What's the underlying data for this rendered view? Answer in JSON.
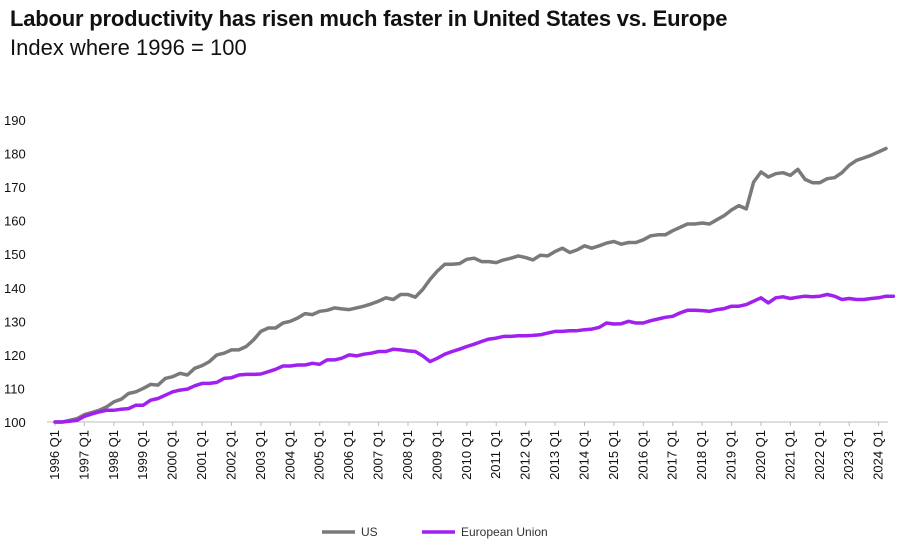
{
  "chart_data": {
    "type": "line",
    "title": "Labour productivity has risen much faster in United States vs. Europe",
    "subtitle": "Index where 1996 = 100",
    "xlabel": "",
    "ylabel": "",
    "ylim": [
      100,
      190
    ],
    "yticks": [
      100,
      110,
      120,
      130,
      140,
      150,
      160,
      170,
      180,
      190
    ],
    "xticks": [
      "1996 Q1",
      "1997 Q1",
      "1998 Q1",
      "1999 Q1",
      "2000 Q1",
      "2001 Q1",
      "2002 Q1",
      "2003 Q1",
      "2004 Q1",
      "2005 Q1",
      "2006 Q1",
      "2007 Q1",
      "2008 Q1",
      "2009 Q1",
      "2010 Q1",
      "2011 Q1",
      "2012 Q1",
      "2013 Q1",
      "2014 Q1",
      "2015 Q1",
      "2016 Q1",
      "2017 Q1",
      "2018 Q1",
      "2019 Q1",
      "2020 Q1",
      "2021 Q1",
      "2022 Q1",
      "2023 Q1",
      "2024 Q1"
    ],
    "x_start": "1996 Q1",
    "x_step": "quarter",
    "x_end": "2024 Q4",
    "grid": false,
    "legend_position": "bottom-center",
    "series": [
      {
        "name": "US",
        "color": "#7a7a7a",
        "values": [
          100,
          100,
          100.5,
          101,
          102.2,
          102.8,
          103.5,
          104.5,
          106,
          106.8,
          108.5,
          109,
          110,
          111.2,
          111,
          113,
          113.5,
          114.5,
          114,
          116,
          116.8,
          118,
          120,
          120.5,
          121.5,
          121.5,
          122.5,
          124.5,
          127,
          128,
          128,
          129.5,
          130,
          131,
          132.3,
          132,
          133,
          133.3,
          134,
          133.7,
          133.5,
          134,
          134.5,
          135.2,
          136,
          137,
          136.5,
          138,
          138,
          137.2,
          139.5,
          142.5,
          145,
          147,
          147,
          147.2,
          148.5,
          148.8,
          147.8,
          147.8,
          147.5,
          148.3,
          148.8,
          149.5,
          149,
          148.3,
          149.7,
          149.5,
          150.8,
          151.8,
          150.5,
          151.3,
          152.5,
          151.8,
          152.5,
          153.3,
          153.8,
          153,
          153.5,
          153.5,
          154.3,
          155.5,
          155.8,
          155.8,
          157,
          158,
          159,
          159,
          159.3,
          159,
          160.3,
          161.5,
          163.2,
          164.5,
          163.5,
          171.5,
          174.5,
          173,
          174,
          174.3,
          173.5,
          175.3,
          172.3,
          171.3,
          171.3,
          172.5,
          172.8,
          174.3,
          176.5,
          178,
          178.7,
          179.5,
          180.5,
          181.5
        ]
      },
      {
        "name": "European Union",
        "color": "#a020f0",
        "values": [
          100,
          100,
          100.2,
          100.5,
          101.7,
          102.4,
          103,
          103.5,
          103.5,
          103.8,
          104,
          105,
          105,
          106.5,
          107,
          108,
          109,
          109.5,
          109.8,
          110.8,
          111.5,
          111.5,
          111.8,
          113,
          113.2,
          114,
          114.2,
          114.2,
          114.3,
          115,
          115.7,
          116.7,
          116.7,
          117,
          117,
          117.5,
          117.2,
          118.5,
          118.5,
          119,
          120,
          119.7,
          120.2,
          120.5,
          121,
          121,
          121.7,
          121.5,
          121.2,
          121,
          119.7,
          118,
          119,
          120.2,
          121,
          121.7,
          122.5,
          123.2,
          124,
          124.7,
          125,
          125.5,
          125.5,
          125.7,
          125.7,
          125.8,
          126,
          126.5,
          127,
          127,
          127.2,
          127.2,
          127.5,
          127.7,
          128.2,
          129.5,
          129.2,
          129.3,
          130,
          129.5,
          129.5,
          130.2,
          130.7,
          131.2,
          131.5,
          132.5,
          133.3,
          133.3,
          133.2,
          133,
          133.5,
          133.8,
          134.5,
          134.5,
          135,
          136,
          137,
          135.5,
          137,
          137.3,
          136.8,
          137.2,
          137.5,
          137.3,
          137.5,
          138,
          137.5,
          136.5,
          136.8,
          136.5,
          136.5,
          136.8,
          137,
          137.5,
          137.5
        ]
      }
    ]
  }
}
